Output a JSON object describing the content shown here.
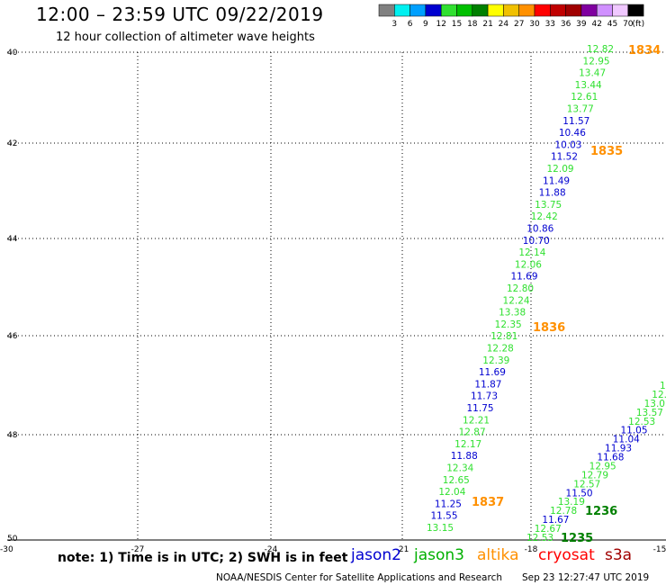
{
  "header": {
    "title": "12:00 – 23:59 UTC 09/22/2019",
    "subtitle": "12 hour collection of altimeter wave heights"
  },
  "legend": {
    "labels": [
      "3",
      "6",
      "9",
      "12",
      "15",
      "18",
      "21",
      "24",
      "27",
      "30",
      "33",
      "36",
      "39",
      "42",
      "45",
      "70"
    ],
    "unit": "(ft)",
    "colors": [
      "#808080",
      "#00f0f0",
      "#00a0ff",
      "#0000d0",
      "#30e030",
      "#00c000",
      "#008000",
      "#ffff00",
      "#f0c000",
      "#ff9000",
      "#ff0000",
      "#c00000",
      "#a00000",
      "#8000a0",
      "#d090ff",
      "#f0c8ff",
      "#000000"
    ]
  },
  "axes": {
    "x_ticks": [
      "-27",
      "-24",
      "-21",
      "-18",
      "-15"
    ],
    "y_ticks": [
      "40",
      "42",
      "44",
      "46",
      "48",
      "50"
    ],
    "corner_label": "-30"
  },
  "map": {
    "tracks": [
      {
        "colors": {
          "0": "#30e030",
          "1": "#0000d0"
        },
        "points": [
          {
            "v": "12.82",
            "c": 0
          },
          {
            "v": "12.95",
            "c": 0
          },
          {
            "v": "13.47",
            "c": 0
          },
          {
            "v": "13.44",
            "c": 0
          },
          {
            "v": "12.61",
            "c": 0
          },
          {
            "v": "13.77",
            "c": 0
          },
          {
            "v": "11.57",
            "c": 1
          },
          {
            "v": "10.46",
            "c": 1
          },
          {
            "v": "10.03",
            "c": 1
          },
          {
            "v": "11.52",
            "c": 1
          },
          {
            "v": "12.09",
            "c": 0
          },
          {
            "v": "11.49",
            "c": 1
          },
          {
            "v": "11.88",
            "c": 1
          },
          {
            "v": "13.75",
            "c": 0
          },
          {
            "v": "12.42",
            "c": 0
          },
          {
            "v": "10.86",
            "c": 1
          },
          {
            "v": "10.70",
            "c": 1
          },
          {
            "v": "12.14",
            "c": 0
          },
          {
            "v": "12.06",
            "c": 0
          },
          {
            "v": "11.69",
            "c": 1
          },
          {
            "v": "12.80",
            "c": 0
          },
          {
            "v": "12.24",
            "c": 0
          },
          {
            "v": "13.38",
            "c": 0
          },
          {
            "v": "12.35",
            "c": 0
          },
          {
            "v": "12.81",
            "c": 0
          },
          {
            "v": "12.28",
            "c": 0
          },
          {
            "v": "12.39",
            "c": 0
          },
          {
            "v": "11.69",
            "c": 1
          },
          {
            "v": "11.87",
            "c": 1
          },
          {
            "v": "11.73",
            "c": 1
          },
          {
            "v": "11.75",
            "c": 1
          },
          {
            "v": "12.21",
            "c": 0
          },
          {
            "v": "12.87",
            "c": 0
          },
          {
            "v": "12.17",
            "c": 0
          },
          {
            "v": "11.88",
            "c": 1
          },
          {
            "v": "12.34",
            "c": 0
          },
          {
            "v": "12.65",
            "c": 0
          },
          {
            "v": "12.04",
            "c": 0
          },
          {
            "v": "11.25",
            "c": 1
          },
          {
            "v": "11.55",
            "c": 1
          },
          {
            "v": "13.15",
            "c": 0
          }
        ]
      },
      {
        "colors": {
          "0": "#30e030",
          "1": "#0000d0"
        },
        "points": [
          {
            "v": "1",
            "c": 0
          },
          {
            "v": "12.",
            "c": 0
          },
          {
            "v": "13.0",
            "c": 0
          },
          {
            "v": "13.57",
            "c": 0
          },
          {
            "v": "12.53",
            "c": 0
          },
          {
            "v": "11.05",
            "c": 1
          },
          {
            "v": "11.04",
            "c": 1
          },
          {
            "v": "11.93",
            "c": 1
          },
          {
            "v": "11.68",
            "c": 1
          },
          {
            "v": "12.95",
            "c": 0
          },
          {
            "v": "12.79",
            "c": 0
          },
          {
            "v": "12.57",
            "c": 0
          },
          {
            "v": "11.50",
            "c": 1
          },
          {
            "v": "13.19",
            "c": 0
          },
          {
            "v": "12.78",
            "c": 0
          },
          {
            "v": "11.67",
            "c": 1
          },
          {
            "v": "12.67",
            "c": 0
          },
          {
            "v": "12.53",
            "c": 0
          }
        ]
      }
    ],
    "pass_times": [
      {
        "t": "1834",
        "color": "#ff9000"
      },
      {
        "t": "1835",
        "color": "#ff9000"
      },
      {
        "t": "1836",
        "color": "#ff9000"
      },
      {
        "t": "1837",
        "color": "#ff9000"
      },
      {
        "t": "1236",
        "color": "#008000"
      },
      {
        "t": "1235",
        "color": "#008000"
      }
    ]
  },
  "footer": {
    "note": "note: 1) Time is in UTC; 2) SWH is in feet",
    "satellites": [
      {
        "name": "jason2",
        "color": "#0000d0"
      },
      {
        "name": "jason3",
        "color": "#00b000"
      },
      {
        "name": "altika",
        "color": "#ff9000"
      },
      {
        "name": "cryosat",
        "color": "#ff0000"
      },
      {
        "name": "s3a",
        "color": "#a00000"
      }
    ],
    "credit": "NOAA/NESDIS Center for Satellite Applications and Research",
    "timestamp": "Sep 23 12:27:47 UTC 2019"
  }
}
